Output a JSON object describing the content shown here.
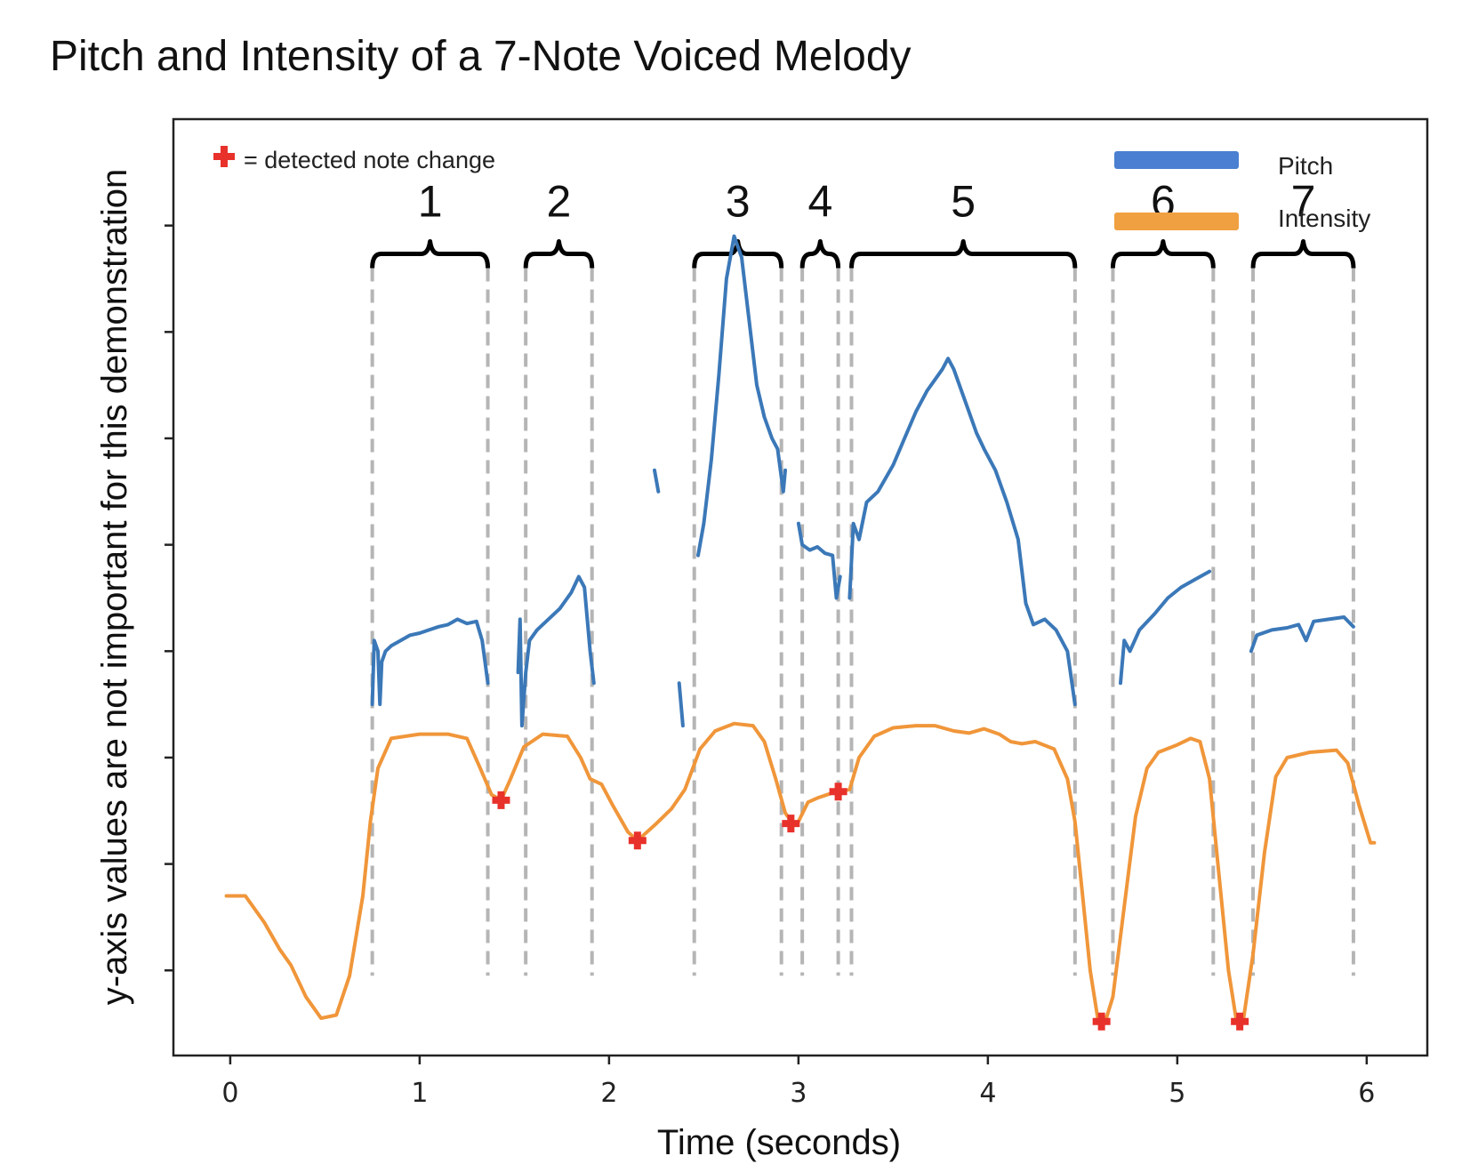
{
  "chart_data": {
    "type": "line",
    "title": "Pitch and Intensity of a 7-Note Voiced Melody",
    "xlabel": "Time (seconds)",
    "ylabel": "y-axis values are not important for this demonstration",
    "xlim": [
      -0.3,
      6.32
    ],
    "ylim": [
      0,
      8.8
    ],
    "x_ticks": [
      0,
      1,
      2,
      3,
      4,
      5,
      6
    ],
    "y_ticks": [
      0.8,
      1.8,
      2.8,
      3.8,
      4.8,
      5.8,
      6.8,
      7.8
    ],
    "grid": false,
    "colors": {
      "pitch": "#3b78b8",
      "intensity": "#f0963a",
      "marker": "#e8312b",
      "boundary": "#b5b5b5"
    },
    "legend": {
      "placement": "top-right",
      "entries": [
        {
          "label": "Pitch",
          "color": "#4a7fd1"
        },
        {
          "label": "Intensity",
          "color": "#f0a040"
        }
      ]
    },
    "marker_note": "= detected note change",
    "series": [
      {
        "name": "Pitch",
        "segments": [
          [
            [
              0.75,
              3.3
            ],
            [
              0.76,
              3.9
            ],
            [
              0.78,
              3.8
            ],
            [
              0.79,
              3.3
            ],
            [
              0.8,
              3.7
            ],
            [
              0.82,
              3.8
            ],
            [
              0.85,
              3.85
            ],
            [
              0.9,
              3.9
            ],
            [
              0.95,
              3.95
            ],
            [
              1.0,
              3.97
            ],
            [
              1.05,
              4.0
            ],
            [
              1.1,
              4.03
            ],
            [
              1.15,
              4.05
            ],
            [
              1.2,
              4.1
            ],
            [
              1.25,
              4.06
            ],
            [
              1.3,
              4.08
            ],
            [
              1.33,
              3.9
            ],
            [
              1.36,
              3.5
            ]
          ],
          [
            [
              1.52,
              3.6
            ],
            [
              1.53,
              4.1
            ],
            [
              1.54,
              3.1
            ],
            [
              1.56,
              3.6
            ],
            [
              1.58,
              3.9
            ],
            [
              1.62,
              4.0
            ],
            [
              1.68,
              4.1
            ],
            [
              1.74,
              4.2
            ],
            [
              1.8,
              4.35
            ],
            [
              1.84,
              4.5
            ],
            [
              1.87,
              4.4
            ],
            [
              1.9,
              3.8
            ],
            [
              1.92,
              3.5
            ]
          ],
          [
            [
              2.24,
              5.5
            ],
            [
              2.26,
              5.3
            ]
          ],
          [
            [
              2.37,
              3.5
            ],
            [
              2.39,
              3.1
            ]
          ],
          [
            [
              2.47,
              4.7
            ],
            [
              2.5,
              5.0
            ],
            [
              2.54,
              5.6
            ],
            [
              2.58,
              6.4
            ],
            [
              2.62,
              7.3
            ],
            [
              2.66,
              7.7
            ],
            [
              2.7,
              7.5
            ],
            [
              2.74,
              6.9
            ],
            [
              2.78,
              6.3
            ],
            [
              2.82,
              6.0
            ],
            [
              2.86,
              5.8
            ],
            [
              2.89,
              5.7
            ],
            [
              2.92,
              5.3
            ],
            [
              2.93,
              5.5
            ]
          ],
          [
            [
              3.0,
              5.0
            ],
            [
              3.02,
              4.8
            ],
            [
              3.06,
              4.75
            ],
            [
              3.1,
              4.78
            ],
            [
              3.14,
              4.72
            ],
            [
              3.18,
              4.7
            ],
            [
              3.2,
              4.3
            ],
            [
              3.22,
              4.5
            ]
          ],
          [
            [
              3.27,
              4.3
            ],
            [
              3.29,
              5.0
            ],
            [
              3.32,
              4.85
            ],
            [
              3.36,
              5.2
            ],
            [
              3.42,
              5.3
            ],
            [
              3.5,
              5.55
            ],
            [
              3.56,
              5.8
            ],
            [
              3.62,
              6.05
            ],
            [
              3.68,
              6.25
            ],
            [
              3.72,
              6.35
            ],
            [
              3.76,
              6.45
            ],
            [
              3.79,
              6.55
            ],
            [
              3.82,
              6.45
            ],
            [
              3.86,
              6.25
            ],
            [
              3.9,
              6.05
            ],
            [
              3.94,
              5.85
            ],
            [
              3.98,
              5.7
            ],
            [
              4.04,
              5.5
            ],
            [
              4.1,
              5.2
            ],
            [
              4.16,
              4.85
            ],
            [
              4.2,
              4.25
            ],
            [
              4.24,
              4.05
            ],
            [
              4.3,
              4.1
            ],
            [
              4.36,
              4.0
            ],
            [
              4.42,
              3.8
            ],
            [
              4.46,
              3.3
            ]
          ],
          [
            [
              4.7,
              3.5
            ],
            [
              4.72,
              3.9
            ],
            [
              4.75,
              3.8
            ],
            [
              4.8,
              4.0
            ],
            [
              4.88,
              4.15
            ],
            [
              4.95,
              4.3
            ],
            [
              5.02,
              4.4
            ],
            [
              5.1,
              4.48
            ],
            [
              5.17,
              4.55
            ]
          ],
          [
            [
              5.39,
              3.8
            ],
            [
              5.42,
              3.95
            ],
            [
              5.5,
              4.0
            ],
            [
              5.58,
              4.02
            ],
            [
              5.64,
              4.05
            ],
            [
              5.68,
              3.9
            ],
            [
              5.72,
              4.08
            ],
            [
              5.8,
              4.1
            ],
            [
              5.88,
              4.12
            ],
            [
              5.93,
              4.03
            ]
          ]
        ]
      },
      {
        "name": "Intensity",
        "points": [
          [
            -0.02,
            1.5
          ],
          [
            0.08,
            1.5
          ],
          [
            0.18,
            1.25
          ],
          [
            0.26,
            1.0
          ],
          [
            0.32,
            0.85
          ],
          [
            0.4,
            0.55
          ],
          [
            0.48,
            0.35
          ],
          [
            0.56,
            0.38
          ],
          [
            0.63,
            0.75
          ],
          [
            0.7,
            1.5
          ],
          [
            0.74,
            2.2
          ],
          [
            0.78,
            2.7
          ],
          [
            0.85,
            2.98
          ],
          [
            1.0,
            3.02
          ],
          [
            1.15,
            3.02
          ],
          [
            1.25,
            2.98
          ],
          [
            1.32,
            2.7
          ],
          [
            1.38,
            2.45
          ],
          [
            1.43,
            2.4
          ],
          [
            1.48,
            2.6
          ],
          [
            1.55,
            2.9
          ],
          [
            1.65,
            3.02
          ],
          [
            1.78,
            3.0
          ],
          [
            1.85,
            2.8
          ],
          [
            1.9,
            2.6
          ],
          [
            1.96,
            2.55
          ],
          [
            2.02,
            2.35
          ],
          [
            2.1,
            2.1
          ],
          [
            2.15,
            2.02
          ],
          [
            2.25,
            2.18
          ],
          [
            2.33,
            2.32
          ],
          [
            2.4,
            2.5
          ],
          [
            2.48,
            2.88
          ],
          [
            2.56,
            3.05
          ],
          [
            2.66,
            3.12
          ],
          [
            2.76,
            3.1
          ],
          [
            2.82,
            2.95
          ],
          [
            2.88,
            2.6
          ],
          [
            2.93,
            2.28
          ],
          [
            2.97,
            2.18
          ],
          [
            3.0,
            2.2
          ],
          [
            3.05,
            2.38
          ],
          [
            3.1,
            2.42
          ],
          [
            3.15,
            2.45
          ],
          [
            3.2,
            2.48
          ],
          [
            3.27,
            2.5
          ],
          [
            3.32,
            2.8
          ],
          [
            3.4,
            3.0
          ],
          [
            3.5,
            3.08
          ],
          [
            3.62,
            3.1
          ],
          [
            3.72,
            3.1
          ],
          [
            3.82,
            3.05
          ],
          [
            3.9,
            3.03
          ],
          [
            3.98,
            3.07
          ],
          [
            4.06,
            3.02
          ],
          [
            4.12,
            2.95
          ],
          [
            4.18,
            2.93
          ],
          [
            4.25,
            2.95
          ],
          [
            4.35,
            2.88
          ],
          [
            4.42,
            2.6
          ],
          [
            4.46,
            2.2
          ],
          [
            4.5,
            1.5
          ],
          [
            4.54,
            0.8
          ],
          [
            4.58,
            0.35
          ],
          [
            4.62,
            0.32
          ],
          [
            4.66,
            0.55
          ],
          [
            4.72,
            1.4
          ],
          [
            4.78,
            2.25
          ],
          [
            4.84,
            2.7
          ],
          [
            4.9,
            2.85
          ],
          [
            5.0,
            2.92
          ],
          [
            5.07,
            2.98
          ],
          [
            5.12,
            2.95
          ],
          [
            5.17,
            2.6
          ],
          [
            5.22,
            1.7
          ],
          [
            5.27,
            0.8
          ],
          [
            5.31,
            0.35
          ],
          [
            5.35,
            0.35
          ],
          [
            5.4,
            0.95
          ],
          [
            5.46,
            1.9
          ],
          [
            5.52,
            2.62
          ],
          [
            5.58,
            2.8
          ],
          [
            5.7,
            2.85
          ],
          [
            5.84,
            2.87
          ],
          [
            5.9,
            2.75
          ],
          [
            5.96,
            2.35
          ],
          [
            6.02,
            2.0
          ],
          [
            6.04,
            2.0
          ]
        ]
      }
    ],
    "note_change_markers": [
      [
        1.43,
        2.4
      ],
      [
        2.15,
        2.02
      ],
      [
        2.96,
        2.18
      ],
      [
        3.21,
        2.48
      ],
      [
        4.6,
        0.32
      ],
      [
        5.33,
        0.32
      ]
    ],
    "segment_boundaries": [
      0.75,
      1.36,
      1.56,
      1.91,
      2.45,
      2.91,
      3.02,
      3.21,
      3.28,
      4.46,
      4.66,
      5.19,
      5.4,
      5.93
    ],
    "note_segments": [
      {
        "label": "1",
        "start": 0.75,
        "end": 1.36
      },
      {
        "label": "2",
        "start": 1.56,
        "end": 1.91
      },
      {
        "label": "3",
        "start": 2.45,
        "end": 2.91
      },
      {
        "label": "4",
        "start": 3.02,
        "end": 3.21
      },
      {
        "label": "5",
        "start": 3.28,
        "end": 4.46
      },
      {
        "label": "6",
        "start": 4.66,
        "end": 5.19
      },
      {
        "label": "7",
        "start": 5.4,
        "end": 5.93
      }
    ]
  }
}
